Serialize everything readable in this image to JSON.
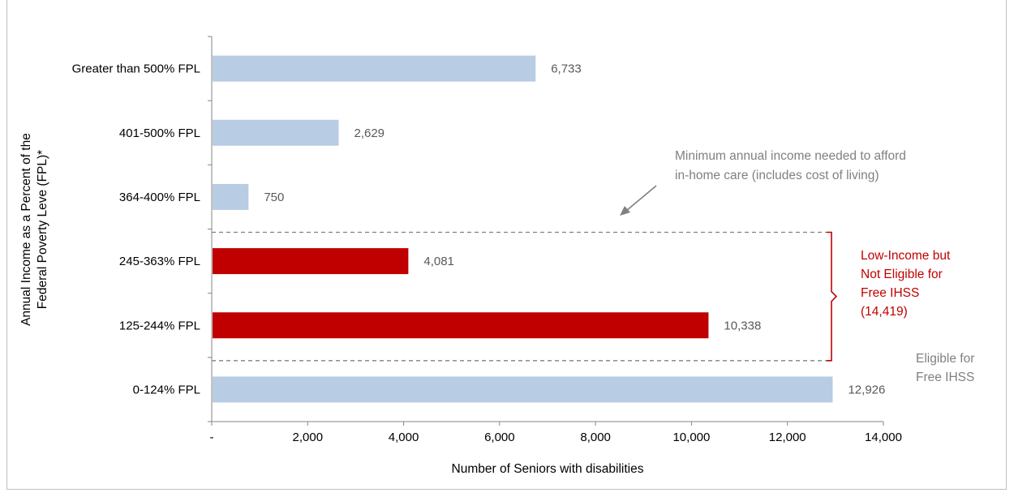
{
  "chart_data": {
    "type": "bar",
    "orientation": "horizontal",
    "title": "",
    "categories": [
      "Greater than 500% FPL",
      "401-500% FPL",
      "364-400% FPL",
      "245-363% FPL",
      "125-244% FPL",
      "0-124% FPL"
    ],
    "values": [
      6733,
      2629,
      750,
      4081,
      10338,
      12926
    ],
    "value_labels": [
      "6,733",
      "2,629",
      "750",
      "4,081",
      "10,338",
      "12,926"
    ],
    "bar_colors": [
      "#b8cce4",
      "#b8cce4",
      "#b8cce4",
      "#c00000",
      "#c00000",
      "#b8cce4"
    ],
    "xlabel": "Number of Seniors with disabilities",
    "ylabel_lines": [
      "Annual Income as a Percent of the",
      "Federal Poverty Leve (FPL)*"
    ],
    "xlim": [
      0,
      14000
    ],
    "x_ticks": [
      0,
      2000,
      4000,
      6000,
      8000,
      10000,
      12000,
      14000
    ],
    "x_tick_labels": [
      "-",
      "2,000",
      "4,000",
      "6,000",
      "8,000",
      "10,000",
      "12,000",
      "14,000"
    ],
    "grid": false,
    "annotations": {
      "threshold_note": [
        "Minimum annual income needed to afford",
        "in-home care (includes cost of living)"
      ],
      "low_income_group": [
        "Low-Income but",
        "Not Eligible for",
        "Free IHSS",
        "(14,419)"
      ],
      "eligible_group": [
        "Eligible for",
        "Free IHSS"
      ]
    },
    "colors": {
      "light_bar": "#b8cce4",
      "highlight_bar": "#c00000",
      "annotation_gray": "#808080",
      "annotation_red": "#c00000",
      "text": "#000000",
      "value_text": "#595959"
    }
  }
}
